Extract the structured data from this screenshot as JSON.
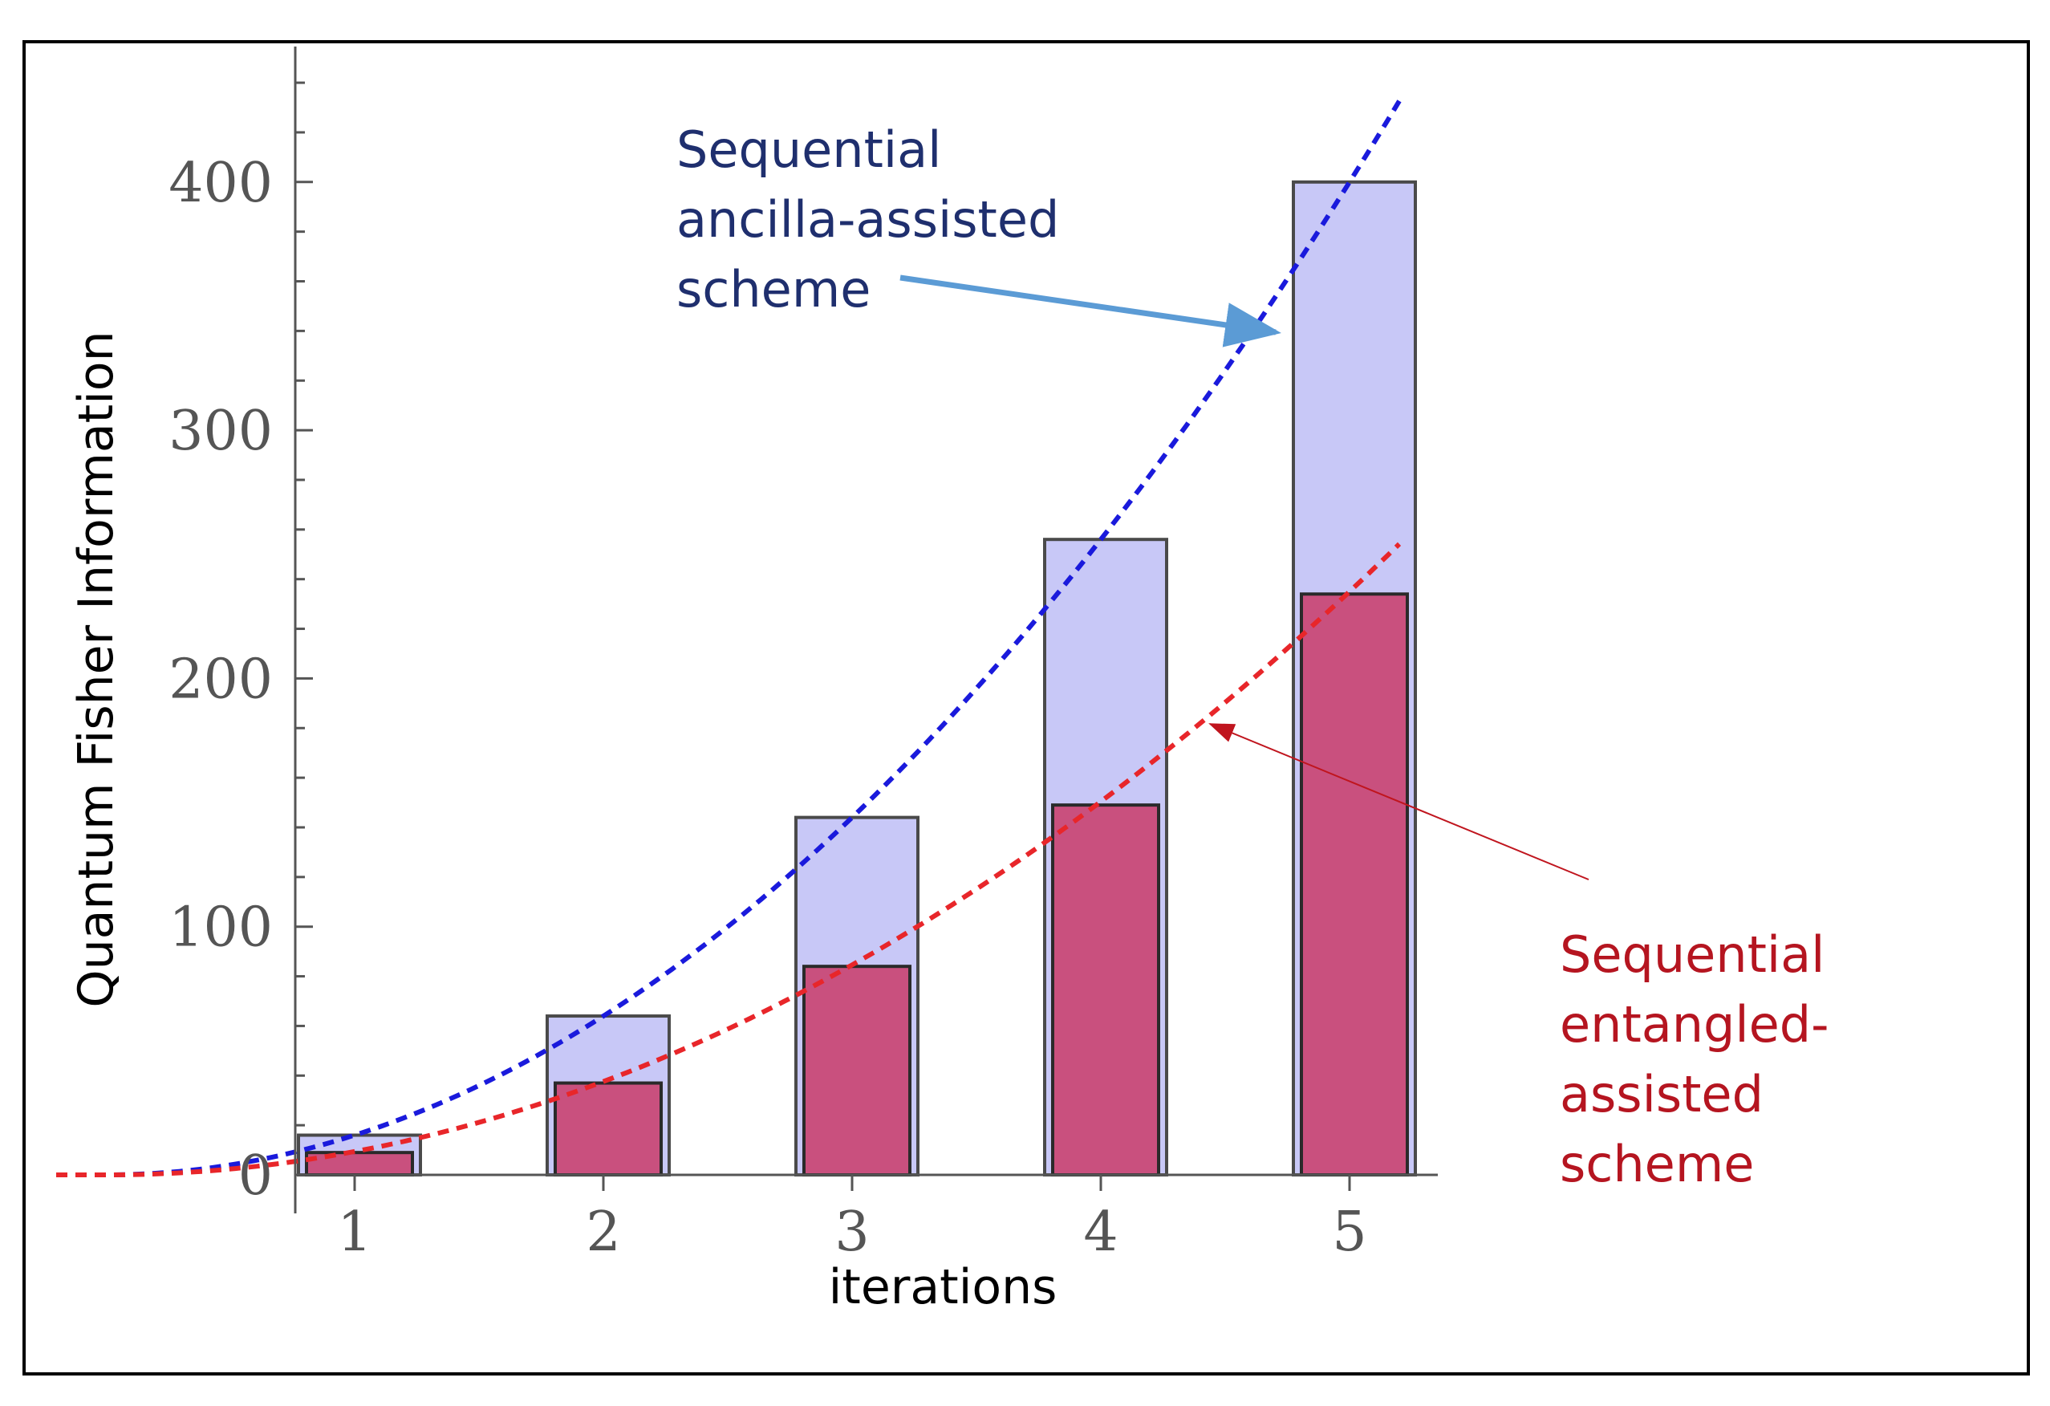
{
  "chart_data": {
    "type": "bar",
    "title": "",
    "xlabel": "iterations",
    "ylabel": "Quantum Fisher Information",
    "categories": [
      "1",
      "2",
      "3",
      "4",
      "5"
    ],
    "xlim": [
      0.5,
      5.6
    ],
    "ylim": [
      0,
      450
    ],
    "yticks": [
      0,
      100,
      200,
      300,
      400
    ],
    "ytick_labels": [
      "0",
      "100",
      "200",
      "300",
      "400"
    ],
    "series": [
      {
        "name": "Sequential ancilla-assisted scheme",
        "values": [
          16,
          64,
          144,
          256,
          400
        ],
        "color": "#c8c8f7"
      },
      {
        "name": "Sequential entangled-assisted scheme",
        "values": [
          9,
          37,
          84,
          149,
          234
        ],
        "color": "#c9507e"
      }
    ],
    "curves": [
      {
        "name": "ancilla-assisted fit",
        "formula": "a*x^2",
        "coef": 16,
        "x_range": [
          -0.2,
          5.2
        ],
        "color": "#1a1adc",
        "style": "dashed"
      },
      {
        "name": "entangled-assisted fit",
        "formula": "a*x^2",
        "coef": 9.4,
        "x_range": [
          -0.2,
          5.2
        ],
        "color": "#e8262a",
        "style": "dashed"
      }
    ],
    "annotations": [
      {
        "lines": [
          "Sequential",
          "ancilla-assisted",
          "scheme"
        ],
        "color": "#1f2f6e",
        "arrow_color": "#5b9bd5"
      },
      {
        "lines": [
          "Sequential",
          "entangled-",
          "assisted",
          "scheme"
        ],
        "color": "#b51520",
        "arrow_color": "#c0151e"
      }
    ]
  }
}
